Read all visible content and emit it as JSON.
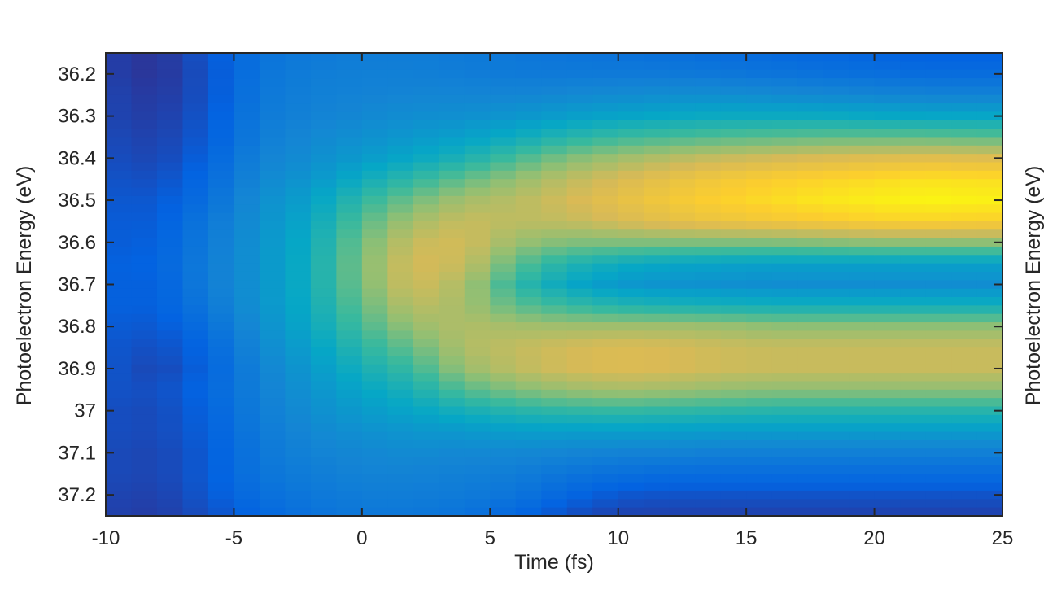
{
  "chart_data": {
    "type": "heatmap",
    "title": "",
    "xlabel": "Time (fs)",
    "ylabel": "Photoelectron Energy (eV)",
    "ylabel_right": "Photoelectron Energy (eV)",
    "xlim": [
      -10,
      25
    ],
    "ylim": [
      36.15,
      37.25
    ],
    "y_reversed": true,
    "x_ticks": [
      -10,
      -5,
      0,
      5,
      10,
      15,
      20,
      25
    ],
    "x_tick_labels": [
      "-10",
      "-5",
      "0",
      "5",
      "10",
      "15",
      "20",
      "25"
    ],
    "y_ticks": [
      36.2,
      36.3,
      36.4,
      36.5,
      36.6,
      36.7,
      36.8,
      36.9,
      37.0,
      37.1,
      37.2
    ],
    "y_tick_labels": [
      "36.2",
      "36.3",
      "36.4",
      "36.5",
      "36.6",
      "36.7",
      "36.8",
      "36.9",
      "37",
      "37.1",
      "37.2"
    ],
    "colormap": "parula",
    "colormap_stops": [
      "#352a87",
      "#0363e1",
      "#1485d4",
      "#06a7c6",
      "#38b99e",
      "#92bf73",
      "#d9ba56",
      "#fcce2e",
      "#f9fb0e"
    ],
    "intensity": {
      "time_fs": [
        -10,
        -8,
        -6,
        -4,
        -2,
        0,
        2,
        4,
        6,
        8,
        10,
        12,
        14,
        16,
        18,
        20,
        22,
        24
      ],
      "energy_eV": [
        36.15,
        36.2,
        36.25,
        36.3,
        36.35,
        36.4,
        36.45,
        36.5,
        36.55,
        36.6,
        36.65,
        36.7,
        36.75,
        36.8,
        36.85,
        36.9,
        36.95,
        37.0,
        37.05,
        37.1,
        37.15,
        37.2,
        37.25
      ],
      "values": [
        [
          0.05,
          0.05,
          0.06,
          0.06,
          0.07,
          0.08,
          0.09,
          0.1,
          0.11,
          0.11,
          0.12,
          0.12,
          0.12,
          0.11,
          0.1,
          0.1,
          0.09,
          0.08,
          0.08,
          0.07,
          0.07,
          0.06,
          0.05
        ],
        [
          0.02,
          0.02,
          0.03,
          0.04,
          0.05,
          0.06,
          0.08,
          0.1,
          0.11,
          0.12,
          0.13,
          0.12,
          0.12,
          0.1,
          0.08,
          0.06,
          0.08,
          0.07,
          0.07,
          0.06,
          0.06,
          0.05,
          0.04
        ],
        [
          0.1,
          0.09,
          0.09,
          0.1,
          0.11,
          0.13,
          0.15,
          0.17,
          0.2,
          0.21,
          0.22,
          0.22,
          0.2,
          0.17,
          0.14,
          0.13,
          0.14,
          0.13,
          0.12,
          0.11,
          0.11,
          0.1,
          0.08
        ],
        [
          0.18,
          0.19,
          0.2,
          0.21,
          0.22,
          0.24,
          0.26,
          0.28,
          0.29,
          0.3,
          0.3,
          0.3,
          0.3,
          0.28,
          0.26,
          0.24,
          0.23,
          0.22,
          0.21,
          0.2,
          0.19,
          0.17,
          0.14
        ],
        [
          0.21,
          0.22,
          0.23,
          0.24,
          0.26,
          0.28,
          0.31,
          0.35,
          0.38,
          0.4,
          0.41,
          0.41,
          0.4,
          0.38,
          0.35,
          0.32,
          0.3,
          0.28,
          0.26,
          0.24,
          0.22,
          0.2,
          0.18
        ],
        [
          0.22,
          0.23,
          0.24,
          0.26,
          0.29,
          0.33,
          0.4,
          0.48,
          0.54,
          0.58,
          0.6,
          0.59,
          0.56,
          0.52,
          0.47,
          0.42,
          0.37,
          0.33,
          0.29,
          0.26,
          0.24,
          0.22,
          0.2
        ],
        [
          0.22,
          0.23,
          0.25,
          0.28,
          0.32,
          0.38,
          0.48,
          0.58,
          0.66,
          0.72,
          0.75,
          0.74,
          0.7,
          0.64,
          0.57,
          0.5,
          0.43,
          0.37,
          0.31,
          0.27,
          0.24,
          0.22,
          0.2
        ],
        [
          0.21,
          0.22,
          0.25,
          0.29,
          0.35,
          0.44,
          0.56,
          0.66,
          0.72,
          0.74,
          0.72,
          0.67,
          0.66,
          0.68,
          0.68,
          0.64,
          0.54,
          0.42,
          0.32,
          0.26,
          0.23,
          0.21,
          0.18
        ],
        [
          0.2,
          0.21,
          0.25,
          0.31,
          0.4,
          0.52,
          0.63,
          0.69,
          0.7,
          0.64,
          0.55,
          0.48,
          0.55,
          0.66,
          0.71,
          0.7,
          0.6,
          0.46,
          0.34,
          0.26,
          0.22,
          0.19,
          0.14
        ],
        [
          0.19,
          0.21,
          0.26,
          0.34,
          0.46,
          0.6,
          0.7,
          0.74,
          0.71,
          0.6,
          0.45,
          0.38,
          0.49,
          0.65,
          0.74,
          0.74,
          0.64,
          0.48,
          0.34,
          0.25,
          0.19,
          0.14,
          0.08
        ],
        [
          0.18,
          0.21,
          0.27,
          0.36,
          0.5,
          0.65,
          0.75,
          0.79,
          0.75,
          0.6,
          0.4,
          0.32,
          0.45,
          0.65,
          0.76,
          0.76,
          0.66,
          0.49,
          0.34,
          0.24,
          0.17,
          0.1,
          0.05
        ],
        [
          0.17,
          0.21,
          0.28,
          0.38,
          0.52,
          0.69,
          0.8,
          0.84,
          0.79,
          0.6,
          0.37,
          0.3,
          0.43,
          0.65,
          0.75,
          0.75,
          0.65,
          0.48,
          0.34,
          0.24,
          0.16,
          0.09,
          0.05
        ],
        [
          0.16,
          0.2,
          0.28,
          0.39,
          0.54,
          0.72,
          0.84,
          0.88,
          0.82,
          0.6,
          0.36,
          0.29,
          0.42,
          0.64,
          0.73,
          0.73,
          0.63,
          0.47,
          0.33,
          0.23,
          0.16,
          0.09,
          0.05
        ],
        [
          0.15,
          0.19,
          0.27,
          0.39,
          0.55,
          0.74,
          0.87,
          0.91,
          0.84,
          0.6,
          0.35,
          0.28,
          0.41,
          0.62,
          0.72,
          0.72,
          0.62,
          0.46,
          0.33,
          0.23,
          0.16,
          0.09,
          0.05
        ],
        [
          0.14,
          0.18,
          0.26,
          0.39,
          0.56,
          0.76,
          0.89,
          0.94,
          0.86,
          0.61,
          0.35,
          0.28,
          0.41,
          0.62,
          0.72,
          0.72,
          0.62,
          0.46,
          0.33,
          0.23,
          0.16,
          0.09,
          0.05
        ],
        [
          0.13,
          0.17,
          0.25,
          0.38,
          0.56,
          0.77,
          0.91,
          0.96,
          0.88,
          0.62,
          0.35,
          0.28,
          0.41,
          0.62,
          0.72,
          0.72,
          0.62,
          0.46,
          0.33,
          0.23,
          0.16,
          0.09,
          0.05
        ],
        [
          0.12,
          0.16,
          0.24,
          0.37,
          0.56,
          0.78,
          0.93,
          0.98,
          0.89,
          0.62,
          0.35,
          0.28,
          0.41,
          0.62,
          0.72,
          0.72,
          0.62,
          0.46,
          0.33,
          0.23,
          0.16,
          0.09,
          0.05
        ],
        [
          0.12,
          0.16,
          0.24,
          0.37,
          0.55,
          0.77,
          0.92,
          0.97,
          0.88,
          0.62,
          0.35,
          0.28,
          0.41,
          0.62,
          0.72,
          0.72,
          0.62,
          0.46,
          0.33,
          0.23,
          0.16,
          0.09,
          0.05
        ]
      ]
    }
  }
}
